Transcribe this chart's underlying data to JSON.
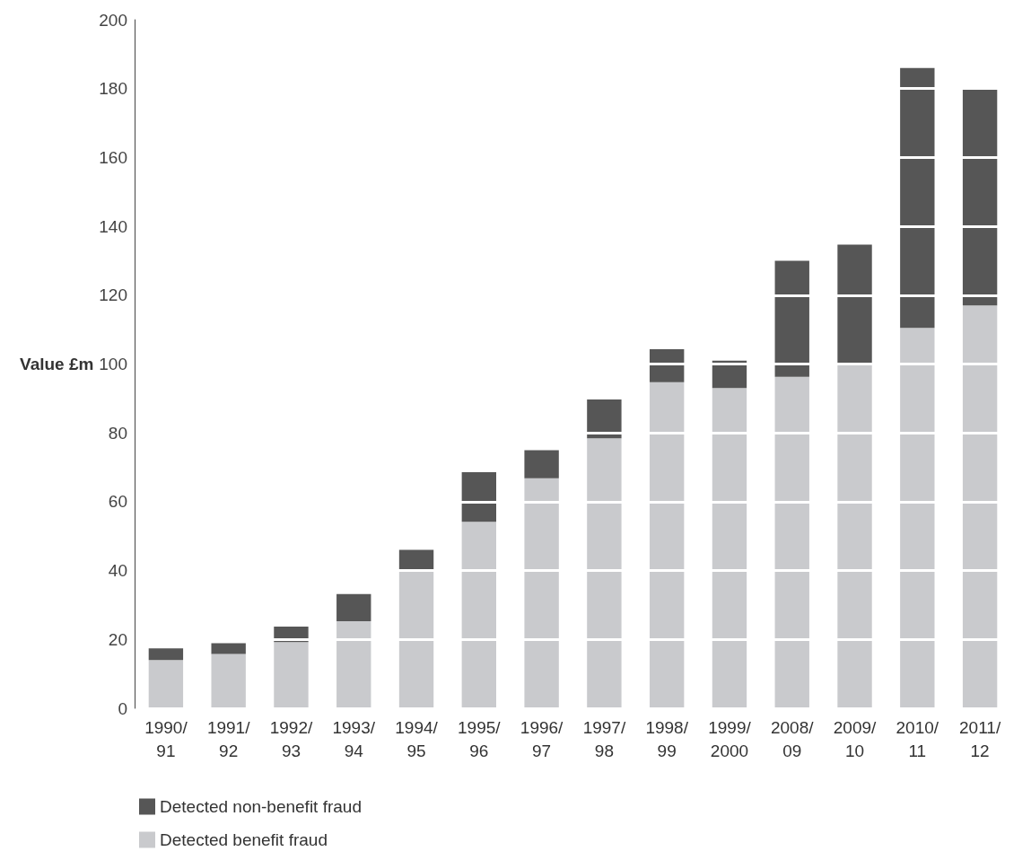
{
  "chart_data": {
    "type": "bar",
    "stacked": true,
    "ylabel": "Value £m",
    "categories": [
      "1990/91",
      "1991/92",
      "1992/93",
      "1993/94",
      "1994/95",
      "1995/96",
      "1996/97",
      "1997/98",
      "1998/99",
      "1999/2000",
      "2008/09",
      "2009/10",
      "2010/11",
      "2011/12"
    ],
    "series": [
      {
        "name": "Detected benefit fraud",
        "color": "#c9cacd",
        "values": [
          14,
          15.8,
          19.2,
          25.3,
          40,
          54.2,
          66.8,
          78.4,
          94.7,
          93,
          96.3,
          99.7,
          110.5,
          117
        ]
      },
      {
        "name": "Detected non-benefit fraud",
        "color": "#565656",
        "values": [
          3.4,
          3.1,
          4.5,
          7.9,
          6,
          14.4,
          8.2,
          11.3,
          9.6,
          8,
          33.7,
          35,
          75.5,
          62.7
        ]
      }
    ],
    "ylim": [
      0,
      200
    ],
    "yticks": [
      0,
      20,
      40,
      60,
      80,
      100,
      120,
      140,
      160,
      180,
      200
    ],
    "grid": "y",
    "legend": "bottom left"
  }
}
